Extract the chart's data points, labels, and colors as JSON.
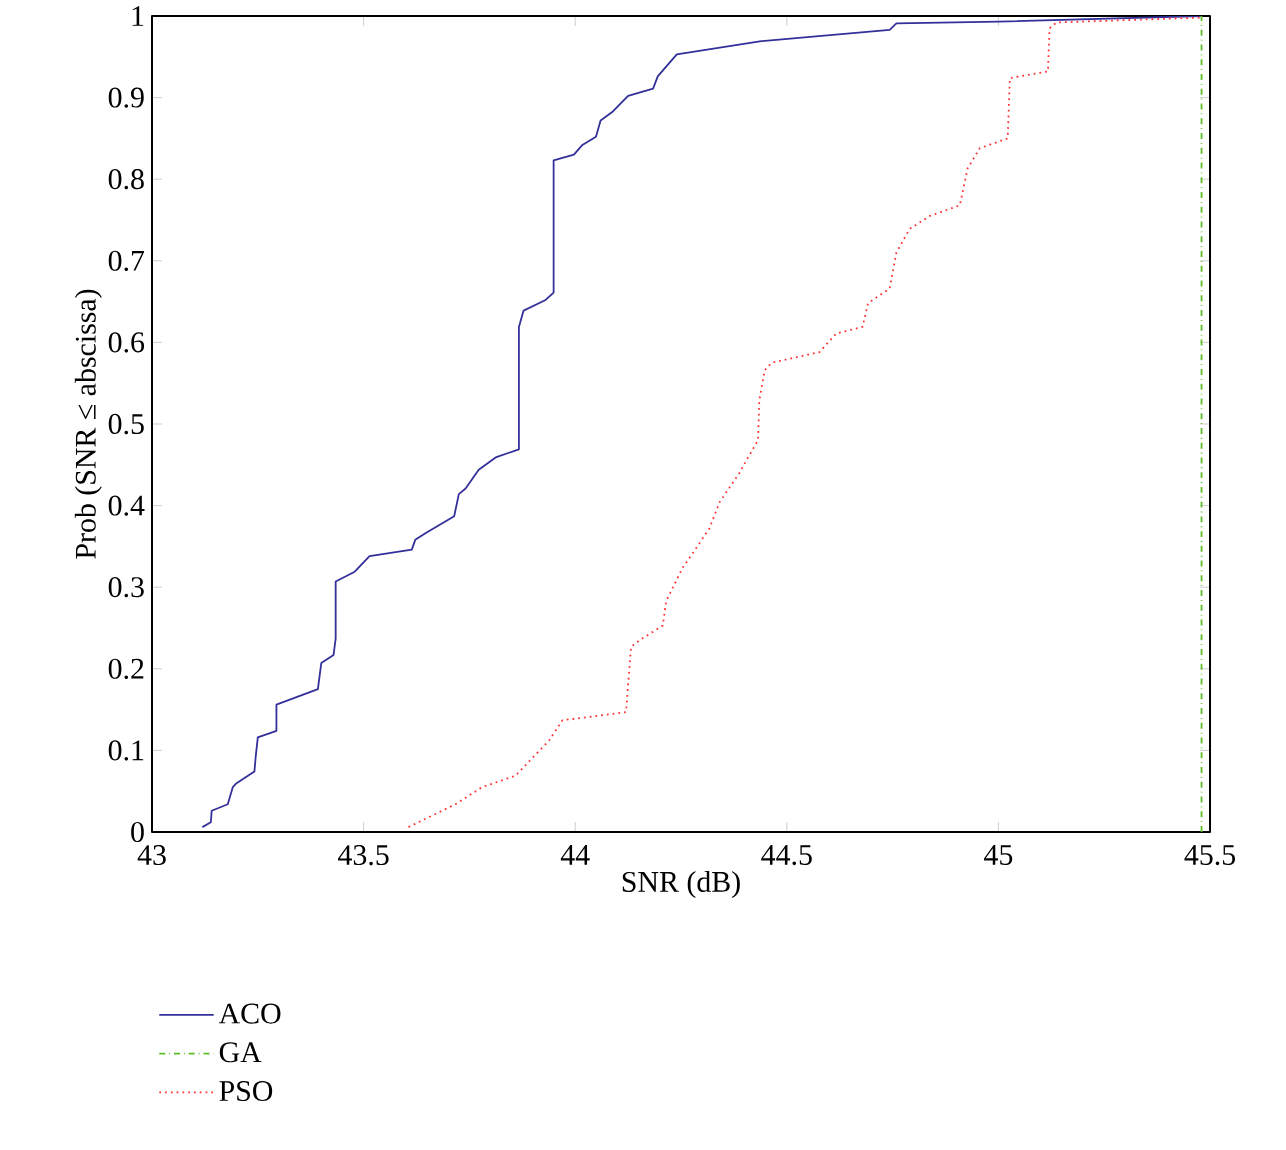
{
  "chart_data": {
    "type": "line",
    "xlabel": "SNR (dB)",
    "ylabel": "Prob (SNR ≤ abscissa)",
    "xlim": [
      43,
      45.5
    ],
    "xticks": [
      43,
      43.5,
      44,
      44.5,
      45,
      45.5
    ],
    "ylim": [
      0,
      1
    ],
    "yticks": [
      0,
      0.1,
      0.2,
      0.3,
      0.4,
      0.5,
      0.6,
      0.7,
      0.8,
      0.9,
      1
    ],
    "legend": "bottom",
    "series": [
      {
        "name": "ACO",
        "color": "#33309a",
        "line_style": "solid",
        "x": [
          43.119,
          43.139,
          43.141,
          43.179,
          43.191,
          43.198,
          43.242,
          43.245,
          43.25,
          43.294,
          43.294,
          43.392,
          43.4,
          43.429,
          43.434,
          43.434,
          43.479,
          43.514,
          43.614,
          43.622,
          43.646,
          43.714,
          43.725,
          43.741,
          43.772,
          43.812,
          43.867,
          43.867,
          43.878,
          43.93,
          43.949,
          43.949,
          43.997,
          44.017,
          44.049,
          44.06,
          44.089,
          44.125,
          44.184,
          44.195,
          44.24,
          44.436,
          44.743,
          44.759,
          45.0,
          45.48
        ],
        "values": [
          0.006,
          0.012,
          0.026,
          0.034,
          0.055,
          0.059,
          0.074,
          0.092,
          0.116,
          0.124,
          0.156,
          0.175,
          0.207,
          0.217,
          0.237,
          0.307,
          0.319,
          0.338,
          0.346,
          0.358,
          0.366,
          0.387,
          0.414,
          0.421,
          0.444,
          0.459,
          0.469,
          0.619,
          0.639,
          0.652,
          0.661,
          0.823,
          0.83,
          0.842,
          0.852,
          0.872,
          0.883,
          0.902,
          0.911,
          0.926,
          0.953,
          0.969,
          0.983,
          0.991,
          0.993,
          1
        ]
      },
      {
        "name": "GA",
        "color": "#5cbf2a",
        "line_style": "dashdot",
        "x": [
          45.48,
          45.48
        ],
        "values": [
          0,
          1
        ]
      },
      {
        "name": "PSO",
        "color": "#ff3333",
        "line_style": "dotted",
        "x": [
          43.606,
          43.717,
          43.78,
          43.859,
          43.938,
          43.97,
          44.033,
          44.12,
          44.132,
          44.155,
          44.207,
          44.215,
          44.254,
          44.286,
          44.317,
          44.341,
          44.388,
          44.404,
          44.432,
          44.435,
          44.448,
          44.464,
          44.577,
          44.617,
          44.679,
          44.692,
          44.743,
          44.759,
          44.79,
          44.838,
          44.909,
          44.927,
          44.956,
          45.022,
          45.027,
          45.117,
          45.121,
          45.137,
          45.476
        ],
        "values": [
          0.006,
          0.034,
          0.055,
          0.069,
          0.112,
          0.137,
          0.141,
          0.147,
          0.227,
          0.236,
          0.253,
          0.283,
          0.324,
          0.348,
          0.372,
          0.404,
          0.44,
          0.455,
          0.48,
          0.529,
          0.566,
          0.575,
          0.588,
          0.611,
          0.619,
          0.648,
          0.666,
          0.71,
          0.739,
          0.755,
          0.768,
          0.813,
          0.838,
          0.85,
          0.924,
          0.932,
          0.985,
          0.992,
          0.998
        ]
      }
    ]
  }
}
